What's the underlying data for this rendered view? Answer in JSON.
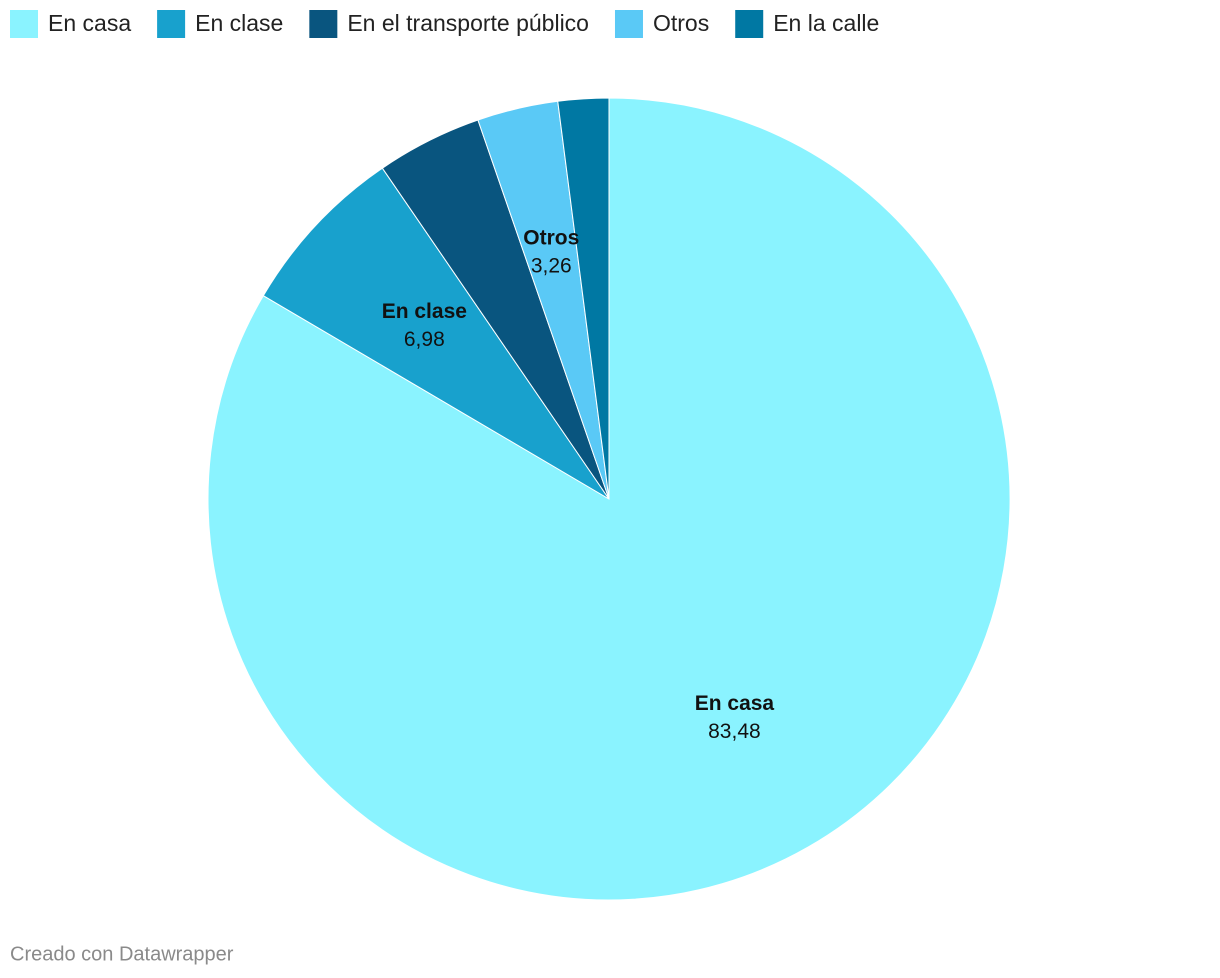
{
  "chart_data": {
    "type": "pie",
    "categories": [
      "En casa",
      "En clase",
      "En el transporte público",
      "Otros",
      "En la calle"
    ],
    "values": [
      83.48,
      6.98,
      4.26,
      3.26,
      2.04
    ],
    "value_labels": [
      "83,48",
      "6,98",
      null,
      "3,26",
      null
    ],
    "colors": [
      "#8af3ff",
      "#18a1cd",
      "#09557f",
      "#5ac9f6",
      "#0078a3"
    ],
    "legend": "top-left",
    "footer": "Creado con Datawrapper"
  }
}
